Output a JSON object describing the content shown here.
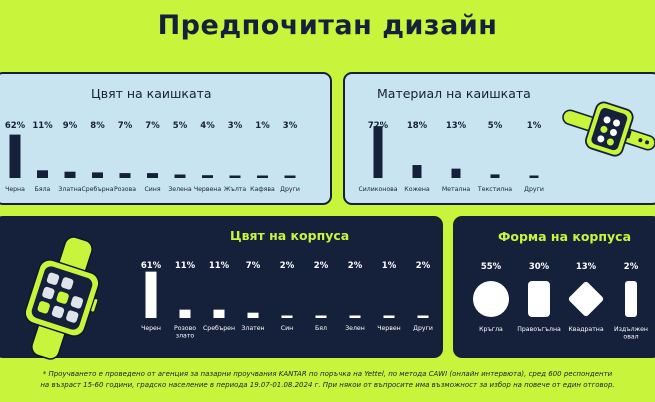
{
  "title": "Предпочитан дизайн",
  "colors": {
    "navy": "#15213a",
    "lime": "#c8f53c",
    "light_blue": "#c8e4f0",
    "white": "#ffffff"
  },
  "chart_data": [
    {
      "id": "strap-color",
      "type": "bar",
      "title": "Цвят на каишката",
      "categories": [
        "Черна",
        "Бяла",
        "Златна",
        "Сребърна",
        "Розова",
        "Синя",
        "Зелена",
        "Червена",
        "Жълта",
        "Кафява",
        "Други"
      ],
      "values": [
        62,
        11,
        9,
        8,
        7,
        7,
        5,
        4,
        3,
        1,
        3
      ],
      "labels": [
        "62%",
        "11%",
        "9%",
        "8%",
        "7%",
        "7%",
        "5%",
        "4%",
        "3%",
        "1%",
        "3%"
      ],
      "unit": "%"
    },
    {
      "id": "strap-material",
      "type": "bar",
      "title": "Материал на каишката",
      "categories": [
        "Силиконова",
        "Кожена",
        "Метална",
        "Текстилна",
        "Други"
      ],
      "values": [
        72,
        18,
        13,
        5,
        1
      ],
      "labels": [
        "72%",
        "18%",
        "13%",
        "5%",
        "1%"
      ],
      "unit": "%"
    },
    {
      "id": "case-color",
      "type": "bar",
      "title": "Цвят на корпуса",
      "categories": [
        "Черен",
        "Розово\nзлато",
        "Сребърен",
        "Златен",
        "Син",
        "Бял",
        "Зелен",
        "Червен",
        "Други"
      ],
      "values": [
        61,
        11,
        11,
        7,
        2,
        2,
        2,
        1,
        2
      ],
      "labels": [
        "61%",
        "11%",
        "11%",
        "7%",
        "2%",
        "2%",
        "2%",
        "1%",
        "2%"
      ],
      "unit": "%"
    },
    {
      "id": "case-shape",
      "type": "bar",
      "title": "Форма на корпуса",
      "categories": [
        "Кръгла",
        "Правоъгълна",
        "Квадратна",
        "Издължен\nовал"
      ],
      "values": [
        55,
        30,
        13,
        2
      ],
      "labels": [
        "55%",
        "30%",
        "13%",
        "2%"
      ],
      "shapes": [
        "circle",
        "rectangle",
        "diamond",
        "oval"
      ],
      "unit": "%"
    }
  ],
  "footnote": {
    "line1": "* Проучването е проведено от агенция за пазарни проучвания KANTAR по поръчка на Yettel, по метода CAWI (онлайн интервюта), сред 600 респонденти",
    "line2": "на възраст 15-60 години, градско население в периода 19.07-01.08.2024 г. При някои от въпросите има възможност за избор на повече от един отговор."
  }
}
